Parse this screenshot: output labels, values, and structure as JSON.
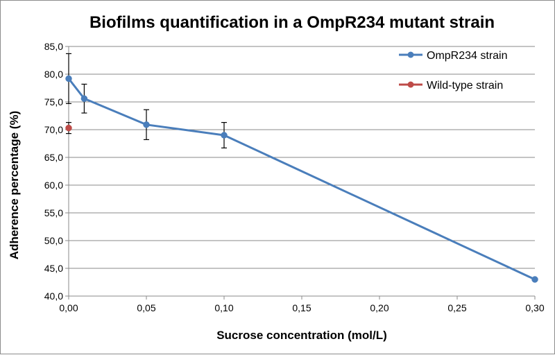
{
  "chart_data": {
    "type": "scatter",
    "title": "Biofilms quantification in a OmpR234 mutant strain",
    "xlabel": "Sucrose concentration (mol/L)",
    "ylabel": "Adherence percentage (%)",
    "xlim": [
      0,
      0.3
    ],
    "ylim": [
      40,
      85
    ],
    "x_ticks": [
      "0,00",
      "0,05",
      "0,10",
      "0,15",
      "0,20",
      "0,25",
      "0,30"
    ],
    "y_ticks": [
      "40,0",
      "45,0",
      "50,0",
      "55,0",
      "60,0",
      "65,0",
      "70,0",
      "75,0",
      "80,0",
      "85,0"
    ],
    "x_tick_values": [
      0,
      0.05,
      0.1,
      0.15,
      0.2,
      0.25,
      0.3
    ],
    "y_tick_values": [
      40,
      45,
      50,
      55,
      60,
      65,
      70,
      75,
      80,
      85
    ],
    "grid": "horizontal",
    "legend_position": "top-right",
    "series": [
      {
        "name": "OmpR234 strain",
        "color": "#4a7ebb",
        "line": true,
        "points": [
          {
            "x": 0.0,
            "y": 79.2,
            "err": 4.5
          },
          {
            "x": 0.01,
            "y": 75.6,
            "err": 2.6
          },
          {
            "x": 0.05,
            "y": 70.9,
            "err": 2.7
          },
          {
            "x": 0.1,
            "y": 69.0,
            "err": 2.3
          },
          {
            "x": 0.3,
            "y": 43.0,
            "err": null
          }
        ]
      },
      {
        "name": "Wild-type strain",
        "color": "#be4b48",
        "line": false,
        "points": [
          {
            "x": 0.0,
            "y": 70.3,
            "err": 1.0
          }
        ]
      }
    ]
  }
}
